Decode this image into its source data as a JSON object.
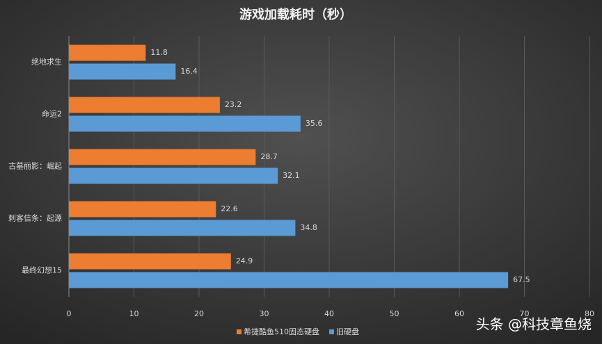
{
  "chart_data": {
    "type": "barh",
    "title": "游戏加载耗时（秒）",
    "categories": [
      "绝地求生",
      "命运2",
      "古墓丽影：崛起",
      "刺客信条：起源",
      "最终幻想15"
    ],
    "series": [
      {
        "name": "希捷酷鱼510固态硬盘",
        "color": "#ed7d31",
        "values": [
          11.8,
          23.2,
          28.7,
          22.6,
          24.9
        ]
      },
      {
        "name": "旧硬盘",
        "color": "#5b9bd5",
        "values": [
          16.4,
          35.6,
          32.1,
          34.8,
          67.5
        ]
      }
    ],
    "xlim": [
      0,
      80
    ],
    "xticks": [
      0,
      10,
      20,
      30,
      40,
      50,
      60,
      70,
      80
    ],
    "grid": true,
    "legend": "bottom",
    "watermark": "头条 @科技章鱼烧"
  }
}
